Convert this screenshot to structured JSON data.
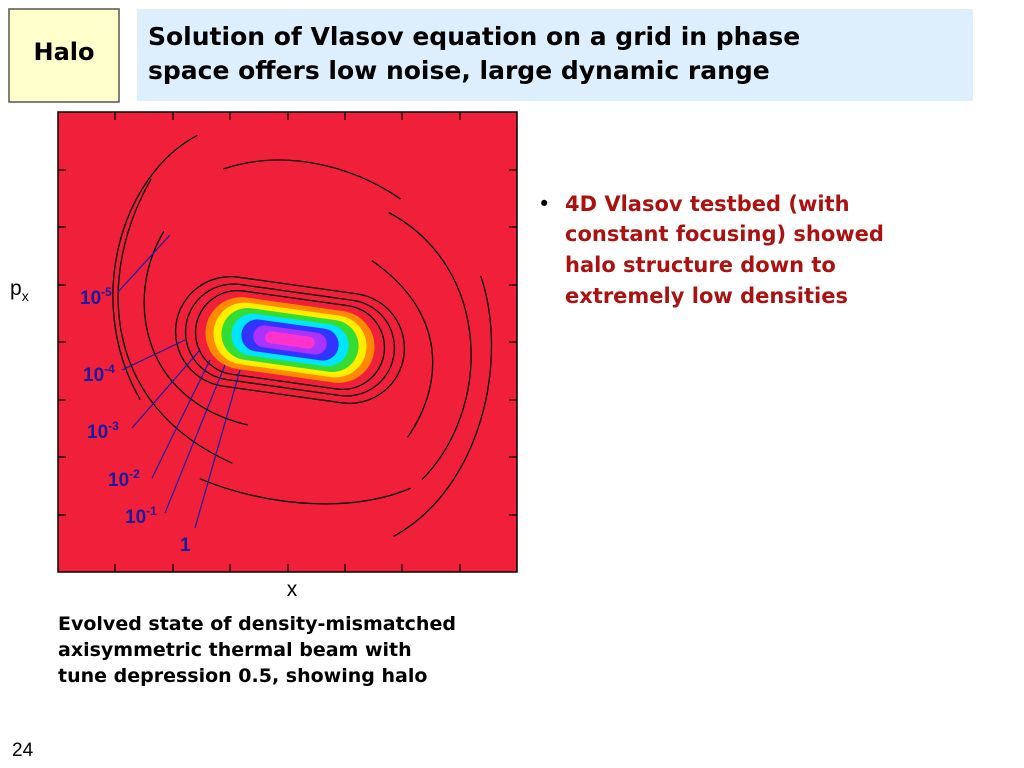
{
  "tag": "Halo",
  "title": {
    "lines": [
      "Solution of Vlasov equation on a grid in phase",
      "space offers low noise, large dynamic range"
    ]
  },
  "figure": {
    "y_label": {
      "base": "p",
      "sub": "x"
    },
    "x_label": "x",
    "contour_labels": [
      {
        "base": "10",
        "exp": "-5"
      },
      {
        "base": "10",
        "exp": "-4"
      },
      {
        "base": "10",
        "exp": "-3"
      },
      {
        "base": "10",
        "exp": "-2"
      },
      {
        "base": "10",
        "exp": "-1"
      },
      {
        "base": "1"
      }
    ],
    "caption": [
      "Evolved state of density-mismatched",
      "axisymmetric thermal beam with",
      "tune depression 0.5, showing halo"
    ]
  },
  "bullet": {
    "marker": "•",
    "lines": [
      "4D Vlasov testbed (with",
      "constant focusing) showed",
      "halo structure down to",
      "extremely low densities"
    ]
  },
  "page_number": "24"
}
